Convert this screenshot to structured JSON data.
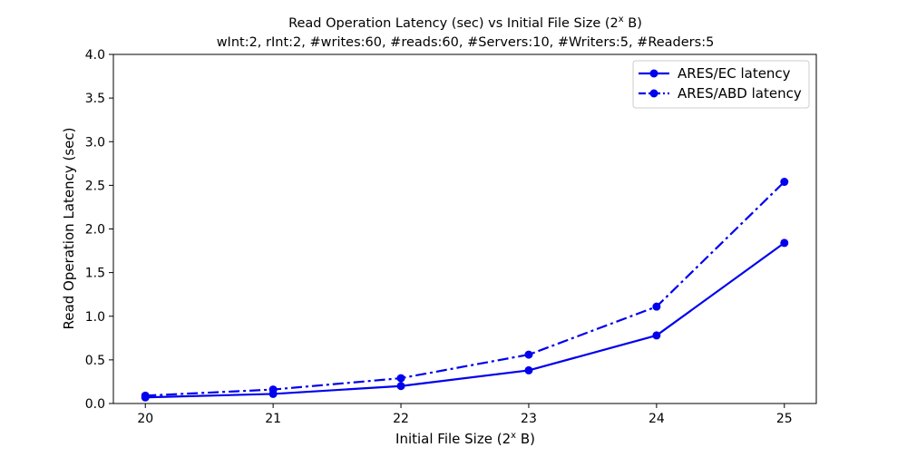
{
  "chart_data": {
    "type": "line",
    "title_line1": "Read Operation Latency (sec) vs Initial File Size (2",
    "title_line1_sup": "x",
    "title_line1_suffix": " B)",
    "title_line2": "wInt:2, rInt:2, #writes:60, #reads:60, #Servers:10, #Writers:5, #Readers:5",
    "xlabel_prefix": "Initial File Size (2",
    "xlabel_sup": "x",
    "xlabel_suffix": " B)",
    "ylabel": "Read Operation Latency (sec)",
    "x": [
      20,
      21,
      22,
      23,
      24,
      25
    ],
    "x_tick_labels": [
      "20",
      "21",
      "22",
      "23",
      "24",
      "25"
    ],
    "xlim": [
      19.75,
      25.25
    ],
    "ylim": [
      0.0,
      4.0
    ],
    "y_ticks": [
      0.0,
      0.5,
      1.0,
      1.5,
      2.0,
      2.5,
      3.0,
      3.5,
      4.0
    ],
    "y_tick_labels": [
      "0.0",
      "0.5",
      "1.0",
      "1.5",
      "2.0",
      "2.5",
      "3.0",
      "3.5",
      "4.0"
    ],
    "grid": false,
    "legend_position": "top-right",
    "series": [
      {
        "name": "ARES/EC latency",
        "values": [
          0.07,
          0.11,
          0.2,
          0.38,
          0.78,
          1.84
        ],
        "color": "#0000ee",
        "style": "solid",
        "marker": "circle"
      },
      {
        "name": "ARES/ABD latency",
        "values": [
          0.09,
          0.16,
          0.29,
          0.56,
          1.11,
          2.54
        ],
        "color": "#0000ee",
        "style": "dashdot",
        "marker": "circle"
      }
    ]
  }
}
